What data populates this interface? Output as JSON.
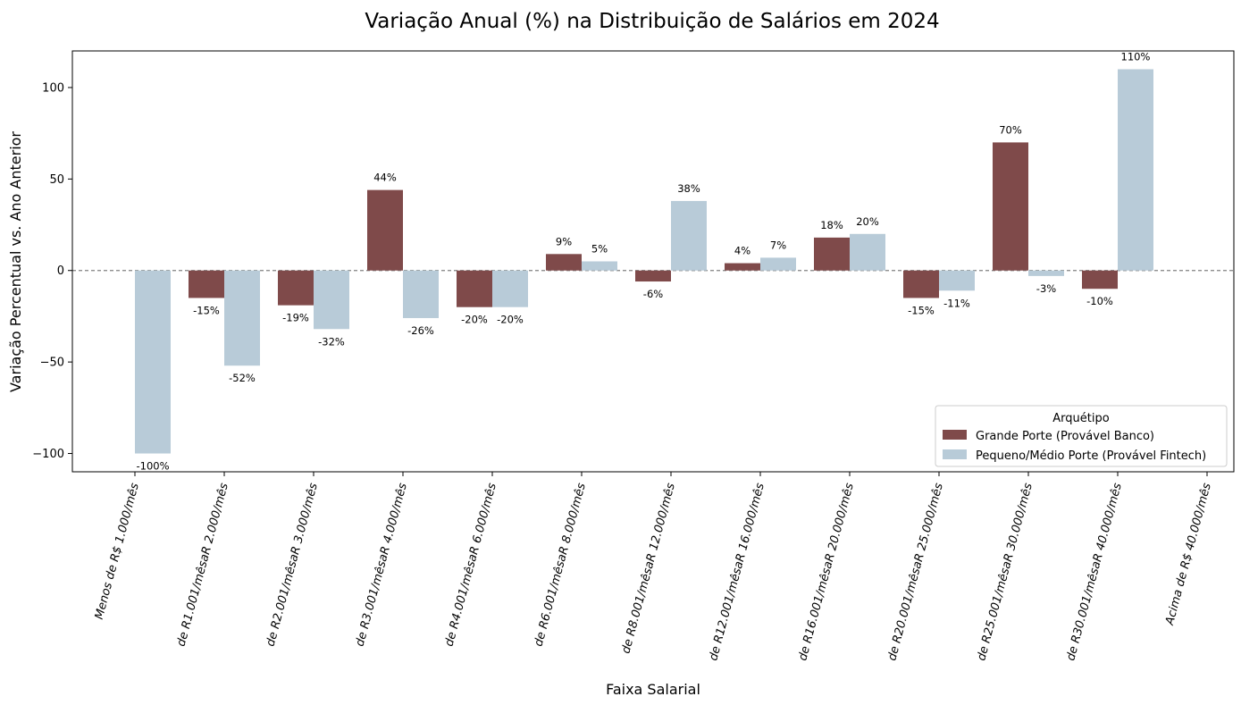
{
  "chart_data": {
    "type": "bar",
    "title": "Variação Anual (%) na Distribuição de Salários em 2024",
    "xlabel": "Faixa Salarial",
    "ylabel": "Variação Percentual vs. Ano Anterior",
    "ylim": [
      -110,
      120
    ],
    "yticks": [
      -100,
      -50,
      0,
      50,
      100
    ],
    "zero_line": true,
    "categories": [
      "Menos de R$ 1.000/mês",
      "de R1.001/mêsaR 2.000/mês",
      "de R2.001/mêsaR 3.000/mês",
      "de R3.001/mêsaR 4.000/mês",
      "de R4.001/mêsaR 6.000/mês",
      "de R6.001/mêsaR 8.000/mês",
      "de R8.001/mêsaR 12.000/mês",
      "de R12.001/mêsaR 16.000/mês",
      "de R16.001/mêsaR 20.000/mês",
      "de R20.001/mêsaR 25.000/mês",
      "de R25.001/mêsaR 30.000/mês",
      "de R30.001/mêsaR 40.000/mês",
      "Acima de R$ 40.000/mês"
    ],
    "legend": {
      "title": "Arquétipo",
      "position": "lower-right"
    },
    "series": [
      {
        "name": "Grande Porte (Provável Banco)",
        "color": "#7f4a4a",
        "values": [
          null,
          -15,
          -19,
          44,
          -20,
          9,
          -6,
          4,
          18,
          -15,
          70,
          -10,
          null
        ],
        "labels": [
          null,
          "-15%",
          "-19%",
          "44%",
          "-20%",
          "9%",
          "-6%",
          "4%",
          "18%",
          "-15%",
          "70%",
          "-10%",
          null
        ]
      },
      {
        "name": "Pequeno/Médio Porte (Provável Fintech)",
        "color": "#b8cbd8",
        "values": [
          -100,
          -52,
          -32,
          -26,
          -20,
          5,
          38,
          7,
          20,
          -11,
          -3,
          110,
          null
        ],
        "labels": [
          "-100%",
          "-52%",
          "-32%",
          "-26%",
          "-20%",
          "5%",
          "38%",
          "7%",
          "20%",
          "-11%",
          "-3%",
          "110%",
          null
        ]
      }
    ]
  }
}
